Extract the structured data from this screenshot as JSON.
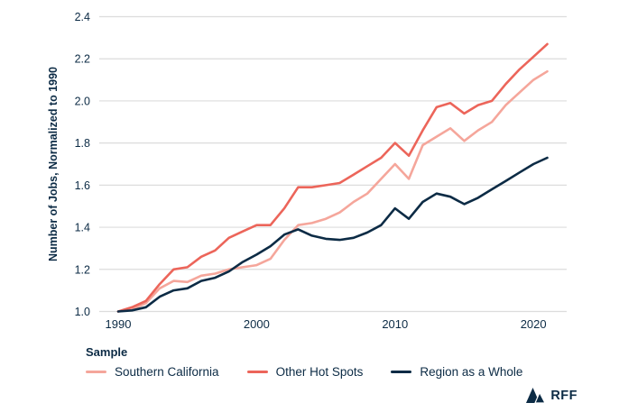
{
  "chart_data": {
    "type": "line",
    "title": "",
    "ylabel": "Number of Jobs, Normalized to 1990",
    "xlabel": "",
    "x": [
      1990,
      1991,
      1992,
      1993,
      1994,
      1995,
      1996,
      1997,
      1998,
      1999,
      2000,
      2001,
      2002,
      2003,
      2004,
      2005,
      2006,
      2007,
      2008,
      2009,
      2010,
      2011,
      2012,
      2013,
      2014,
      2015,
      2016,
      2017,
      2018,
      2019,
      2020,
      2021
    ],
    "x_ticks": [
      1990,
      2000,
      2010,
      2020
    ],
    "y_ticks": [
      1.0,
      1.2,
      1.4,
      1.6,
      1.8,
      2.0,
      2.2,
      2.4
    ],
    "xlim": [
      1990,
      2021
    ],
    "ylim": [
      1.0,
      2.4
    ],
    "grid": true,
    "grid_color": "#dcdcdc",
    "text_color": "#0c2b45",
    "legend_title": "Sample",
    "legend_position": "bottom-left",
    "series": [
      {
        "name": "Southern California",
        "color": "#f5a69b",
        "values": [
          1.0,
          1.01,
          1.04,
          1.11,
          1.145,
          1.14,
          1.17,
          1.18,
          1.2,
          1.21,
          1.22,
          1.25,
          1.34,
          1.41,
          1.42,
          1.44,
          1.47,
          1.52,
          1.56,
          1.63,
          1.7,
          1.63,
          1.79,
          1.83,
          1.87,
          1.81,
          1.86,
          1.9,
          1.98,
          2.04,
          2.1,
          2.14
        ]
      },
      {
        "name": "Other Hot Spots",
        "color": "#ec655a",
        "values": [
          1.0,
          1.02,
          1.05,
          1.13,
          1.2,
          1.21,
          1.26,
          1.29,
          1.35,
          1.38,
          1.41,
          1.41,
          1.49,
          1.59,
          1.59,
          1.6,
          1.61,
          1.65,
          1.69,
          1.73,
          1.8,
          1.74,
          1.86,
          1.97,
          1.99,
          1.94,
          1.98,
          2.0,
          2.08,
          2.15,
          2.21,
          2.27
        ]
      },
      {
        "name": "Region as a Whole",
        "color": "#0c2b45",
        "values": [
          1.0,
          1.005,
          1.02,
          1.07,
          1.1,
          1.11,
          1.145,
          1.16,
          1.19,
          1.235,
          1.27,
          1.31,
          1.365,
          1.39,
          1.36,
          1.345,
          1.34,
          1.35,
          1.375,
          1.41,
          1.49,
          1.44,
          1.52,
          1.56,
          1.545,
          1.51,
          1.54,
          1.58,
          1.62,
          1.66,
          1.7,
          1.73
        ]
      }
    ]
  },
  "branding": {
    "logo_text": "RFF"
  }
}
